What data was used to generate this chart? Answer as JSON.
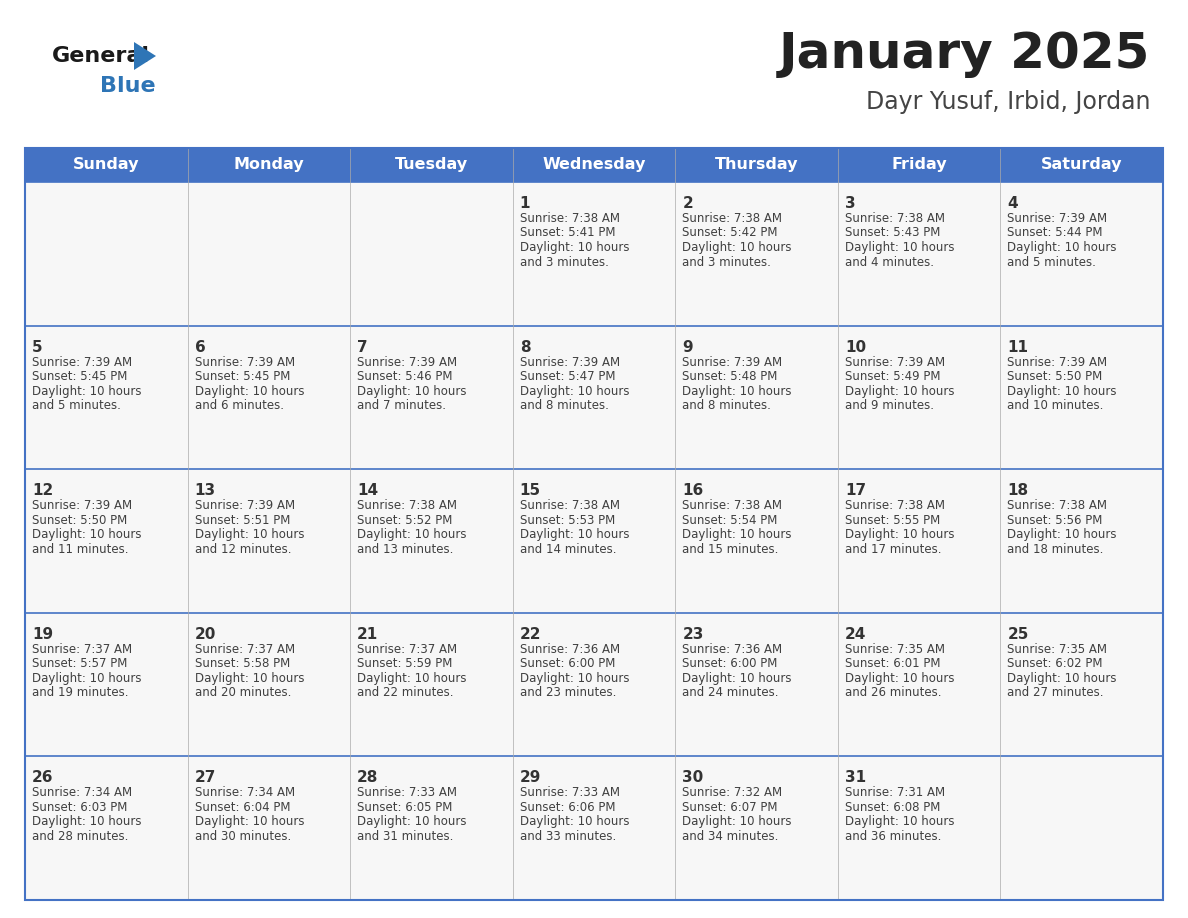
{
  "title": "January 2025",
  "subtitle": "Dayr Yusuf, Irbid, Jordan",
  "header_bg_color": "#4472C4",
  "header_text_color": "#FFFFFF",
  "day_names": [
    "Sunday",
    "Monday",
    "Tuesday",
    "Wednesday",
    "Thursday",
    "Friday",
    "Saturday"
  ],
  "cell_text_color": "#404040",
  "day_number_color": "#333333",
  "border_color": "#4472C4",
  "row_line_color": "#4472C4",
  "col_line_color": "#AAAAAA",
  "title_color": "#222222",
  "subtitle_color": "#444444",
  "bg_color": "#FFFFFF",
  "cell_bg_color": "#F7F7F7",
  "days": [
    {
      "day": 1,
      "col": 3,
      "row": 0,
      "sunrise": "7:38 AM",
      "sunset": "5:41 PM",
      "daylight_line1": "Daylight: 10 hours",
      "daylight_line2": "and 3 minutes."
    },
    {
      "day": 2,
      "col": 4,
      "row": 0,
      "sunrise": "7:38 AM",
      "sunset": "5:42 PM",
      "daylight_line1": "Daylight: 10 hours",
      "daylight_line2": "and 3 minutes."
    },
    {
      "day": 3,
      "col": 5,
      "row": 0,
      "sunrise": "7:38 AM",
      "sunset": "5:43 PM",
      "daylight_line1": "Daylight: 10 hours",
      "daylight_line2": "and 4 minutes."
    },
    {
      "day": 4,
      "col": 6,
      "row": 0,
      "sunrise": "7:39 AM",
      "sunset": "5:44 PM",
      "daylight_line1": "Daylight: 10 hours",
      "daylight_line2": "and 5 minutes."
    },
    {
      "day": 5,
      "col": 0,
      "row": 1,
      "sunrise": "7:39 AM",
      "sunset": "5:45 PM",
      "daylight_line1": "Daylight: 10 hours",
      "daylight_line2": "and 5 minutes."
    },
    {
      "day": 6,
      "col": 1,
      "row": 1,
      "sunrise": "7:39 AM",
      "sunset": "5:45 PM",
      "daylight_line1": "Daylight: 10 hours",
      "daylight_line2": "and 6 minutes."
    },
    {
      "day": 7,
      "col": 2,
      "row": 1,
      "sunrise": "7:39 AM",
      "sunset": "5:46 PM",
      "daylight_line1": "Daylight: 10 hours",
      "daylight_line2": "and 7 minutes."
    },
    {
      "day": 8,
      "col": 3,
      "row": 1,
      "sunrise": "7:39 AM",
      "sunset": "5:47 PM",
      "daylight_line1": "Daylight: 10 hours",
      "daylight_line2": "and 8 minutes."
    },
    {
      "day": 9,
      "col": 4,
      "row": 1,
      "sunrise": "7:39 AM",
      "sunset": "5:48 PM",
      "daylight_line1": "Daylight: 10 hours",
      "daylight_line2": "and 8 minutes."
    },
    {
      "day": 10,
      "col": 5,
      "row": 1,
      "sunrise": "7:39 AM",
      "sunset": "5:49 PM",
      "daylight_line1": "Daylight: 10 hours",
      "daylight_line2": "and 9 minutes."
    },
    {
      "day": 11,
      "col": 6,
      "row": 1,
      "sunrise": "7:39 AM",
      "sunset": "5:50 PM",
      "daylight_line1": "Daylight: 10 hours",
      "daylight_line2": "and 10 minutes."
    },
    {
      "day": 12,
      "col": 0,
      "row": 2,
      "sunrise": "7:39 AM",
      "sunset": "5:50 PM",
      "daylight_line1": "Daylight: 10 hours",
      "daylight_line2": "and 11 minutes."
    },
    {
      "day": 13,
      "col": 1,
      "row": 2,
      "sunrise": "7:39 AM",
      "sunset": "5:51 PM",
      "daylight_line1": "Daylight: 10 hours",
      "daylight_line2": "and 12 minutes."
    },
    {
      "day": 14,
      "col": 2,
      "row": 2,
      "sunrise": "7:38 AM",
      "sunset": "5:52 PM",
      "daylight_line1": "Daylight: 10 hours",
      "daylight_line2": "and 13 minutes."
    },
    {
      "day": 15,
      "col": 3,
      "row": 2,
      "sunrise": "7:38 AM",
      "sunset": "5:53 PM",
      "daylight_line1": "Daylight: 10 hours",
      "daylight_line2": "and 14 minutes."
    },
    {
      "day": 16,
      "col": 4,
      "row": 2,
      "sunrise": "7:38 AM",
      "sunset": "5:54 PM",
      "daylight_line1": "Daylight: 10 hours",
      "daylight_line2": "and 15 minutes."
    },
    {
      "day": 17,
      "col": 5,
      "row": 2,
      "sunrise": "7:38 AM",
      "sunset": "5:55 PM",
      "daylight_line1": "Daylight: 10 hours",
      "daylight_line2": "and 17 minutes."
    },
    {
      "day": 18,
      "col": 6,
      "row": 2,
      "sunrise": "7:38 AM",
      "sunset": "5:56 PM",
      "daylight_line1": "Daylight: 10 hours",
      "daylight_line2": "and 18 minutes."
    },
    {
      "day": 19,
      "col": 0,
      "row": 3,
      "sunrise": "7:37 AM",
      "sunset": "5:57 PM",
      "daylight_line1": "Daylight: 10 hours",
      "daylight_line2": "and 19 minutes."
    },
    {
      "day": 20,
      "col": 1,
      "row": 3,
      "sunrise": "7:37 AM",
      "sunset": "5:58 PM",
      "daylight_line1": "Daylight: 10 hours",
      "daylight_line2": "and 20 minutes."
    },
    {
      "day": 21,
      "col": 2,
      "row": 3,
      "sunrise": "7:37 AM",
      "sunset": "5:59 PM",
      "daylight_line1": "Daylight: 10 hours",
      "daylight_line2": "and 22 minutes."
    },
    {
      "day": 22,
      "col": 3,
      "row": 3,
      "sunrise": "7:36 AM",
      "sunset": "6:00 PM",
      "daylight_line1": "Daylight: 10 hours",
      "daylight_line2": "and 23 minutes."
    },
    {
      "day": 23,
      "col": 4,
      "row": 3,
      "sunrise": "7:36 AM",
      "sunset": "6:00 PM",
      "daylight_line1": "Daylight: 10 hours",
      "daylight_line2": "and 24 minutes."
    },
    {
      "day": 24,
      "col": 5,
      "row": 3,
      "sunrise": "7:35 AM",
      "sunset": "6:01 PM",
      "daylight_line1": "Daylight: 10 hours",
      "daylight_line2": "and 26 minutes."
    },
    {
      "day": 25,
      "col": 6,
      "row": 3,
      "sunrise": "7:35 AM",
      "sunset": "6:02 PM",
      "daylight_line1": "Daylight: 10 hours",
      "daylight_line2": "and 27 minutes."
    },
    {
      "day": 26,
      "col": 0,
      "row": 4,
      "sunrise": "7:34 AM",
      "sunset": "6:03 PM",
      "daylight_line1": "Daylight: 10 hours",
      "daylight_line2": "and 28 minutes."
    },
    {
      "day": 27,
      "col": 1,
      "row": 4,
      "sunrise": "7:34 AM",
      "sunset": "6:04 PM",
      "daylight_line1": "Daylight: 10 hours",
      "daylight_line2": "and 30 minutes."
    },
    {
      "day": 28,
      "col": 2,
      "row": 4,
      "sunrise": "7:33 AM",
      "sunset": "6:05 PM",
      "daylight_line1": "Daylight: 10 hours",
      "daylight_line2": "and 31 minutes."
    },
    {
      "day": 29,
      "col": 3,
      "row": 4,
      "sunrise": "7:33 AM",
      "sunset": "6:06 PM",
      "daylight_line1": "Daylight: 10 hours",
      "daylight_line2": "and 33 minutes."
    },
    {
      "day": 30,
      "col": 4,
      "row": 4,
      "sunrise": "7:32 AM",
      "sunset": "6:07 PM",
      "daylight_line1": "Daylight: 10 hours",
      "daylight_line2": "and 34 minutes."
    },
    {
      "day": 31,
      "col": 5,
      "row": 4,
      "sunrise": "7:31 AM",
      "sunset": "6:08 PM",
      "daylight_line1": "Daylight: 10 hours",
      "daylight_line2": "and 36 minutes."
    }
  ]
}
